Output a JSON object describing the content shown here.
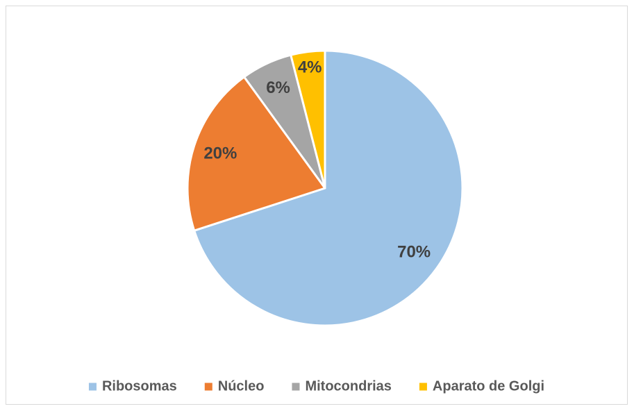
{
  "chart_data": {
    "type": "pie",
    "categories": [
      "Ribosomas",
      "Núcleo",
      "Mitocondrias",
      "Aparato de Golgi"
    ],
    "values": [
      70,
      20,
      6,
      4
    ],
    "value_labels": [
      "70%",
      "20%",
      "6%",
      "4%"
    ],
    "colors": [
      "#9dc3e6",
      "#ed7d31",
      "#a5a5a5",
      "#ffc000"
    ],
    "legend": "bottom"
  }
}
